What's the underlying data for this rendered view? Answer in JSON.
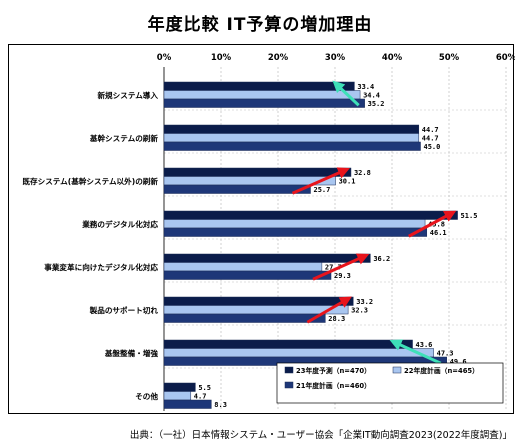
{
  "page": {
    "title": "年度比較 IT予算の増加理由",
    "source": "出典：（一社）日本情報システム・ユーザー協会「企業IT動向調査2023(2022年度調査)」"
  },
  "colors": {
    "fy23": "#0b1c4a",
    "fy22": "#a9c6f0",
    "fy21": "#1e3778",
    "arrow_up": "#e8141c",
    "arrow_down": "#3ee0b8"
  },
  "chart_data": {
    "type": "bar",
    "orientation": "horizontal",
    "title": "年度比較 IT予算の増加理由",
    "categories": [
      "新規システム導入",
      "基幹システムの刷新",
      "既存システム(基幹システム以外)の刷新",
      "業務のデジタル化対応",
      "事業変革に向けたデジタル化対応",
      "製品のサポート切れ",
      "基盤整備・増強",
      "その他"
    ],
    "series": [
      {
        "name": "23年度予測（n=470）",
        "key": "fy23",
        "values": [
          33.4,
          44.7,
          32.8,
          51.5,
          36.2,
          33.2,
          43.6,
          5.5
        ]
      },
      {
        "name": "22年度計画（n=465）",
        "key": "fy22",
        "values": [
          34.4,
          44.7,
          30.1,
          45.8,
          27.7,
          32.3,
          47.3,
          4.7
        ]
      },
      {
        "name": "21年度計画（n=460）",
        "key": "fy21",
        "values": [
          35.2,
          45.0,
          25.7,
          46.1,
          29.3,
          28.3,
          49.6,
          8.3
        ]
      }
    ],
    "value_labels": [
      [
        "33.4",
        "44.7",
        "32.8",
        "51.5",
        "36.2",
        "33.2",
        "43.6",
        "5.5"
      ],
      [
        "34.4",
        "44.7",
        "30.1",
        "45.8",
        "27.7",
        "32.3",
        "47.3",
        "4.7"
      ],
      [
        "35.2",
        "45.0",
        "25.7",
        "46.1",
        "29.3",
        "28.3",
        "49.6",
        "8.3"
      ]
    ],
    "xlim": [
      0,
      60
    ],
    "xticks": [
      0,
      10,
      20,
      30,
      40,
      50,
      60
    ],
    "xtick_labels": [
      "0%",
      "10%",
      "20%",
      "30%",
      "40%",
      "50%",
      "60%"
    ],
    "grid": true,
    "legend_position": "bottom-right",
    "annotations": [
      {
        "category": "新規システム導入",
        "direction": "down"
      },
      {
        "category": "既存システム(基幹システム以外)の刷新",
        "direction": "up"
      },
      {
        "category": "業務のデジタル化対応",
        "direction": "up"
      },
      {
        "category": "事業変革に向けたデジタル化対応",
        "direction": "up"
      },
      {
        "category": "製品のサポート切れ",
        "direction": "up"
      },
      {
        "category": "基盤整備・増強",
        "direction": "down"
      }
    ]
  }
}
